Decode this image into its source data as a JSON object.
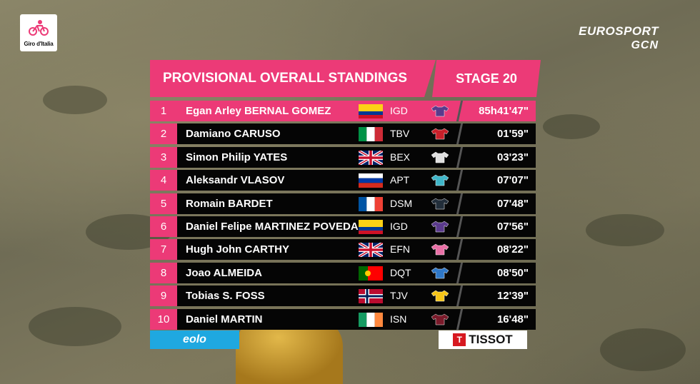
{
  "race_logo": {
    "text": "Giro d'Italia",
    "icon": "giro-cyclist-icon"
  },
  "broadcaster": {
    "line1": "EUROSPORT",
    "line2": "GCN"
  },
  "header": {
    "title": "PROVISIONAL OVERALL STANDINGS",
    "stage": "STAGE 20"
  },
  "colors": {
    "accent": "#ec3a77",
    "row_bg": "#050505"
  },
  "standings": [
    {
      "rank": "1",
      "name": "Egan Arley BERNAL GOMEZ",
      "flag": "colombia",
      "team": "IGD",
      "jersey": "#5a3a8c",
      "time": "85h41'47\""
    },
    {
      "rank": "2",
      "name": "Damiano CARUSO",
      "flag": "italy",
      "team": "TBV",
      "jersey": "#c8202a",
      "time": "01'59\""
    },
    {
      "rank": "3",
      "name": "Simon Philip YATES",
      "flag": "uk",
      "team": "BEX",
      "jersey": "#e0e0e0",
      "time": "03'23\""
    },
    {
      "rank": "4",
      "name": "Aleksandr VLASOV",
      "flag": "russia",
      "team": "APT",
      "jersey": "#3fb6c9",
      "time": "07'07\""
    },
    {
      "rank": "5",
      "name": "Romain BARDET",
      "flag": "france",
      "team": "DSM",
      "jersey": "#222e3a",
      "time": "07'48\""
    },
    {
      "rank": "6",
      "name": "Daniel Felipe MARTINEZ POVEDA",
      "flag": "colombia",
      "team": "IGD",
      "jersey": "#5a3a8c",
      "time": "07'56\""
    },
    {
      "rank": "7",
      "name": "Hugh John CARTHY",
      "flag": "uk",
      "team": "EFN",
      "jersey": "#e86fa5",
      "time": "08'22\""
    },
    {
      "rank": "8",
      "name": "Joao ALMEIDA",
      "flag": "portugal",
      "team": "DQT",
      "jersey": "#2f78c8",
      "time": "08'50\""
    },
    {
      "rank": "9",
      "name": "Tobias S. FOSS",
      "flag": "norway",
      "team": "TJV",
      "jersey": "#f5c518",
      "time": "12'39\""
    },
    {
      "rank": "10",
      "name": "Daniel MARTIN",
      "flag": "ireland",
      "team": "ISN",
      "jersey": "#7a1a2a",
      "time": "16'48\""
    }
  ],
  "sponsors": {
    "left": "eolo",
    "right": "TISSOT",
    "right_mark": "T"
  }
}
